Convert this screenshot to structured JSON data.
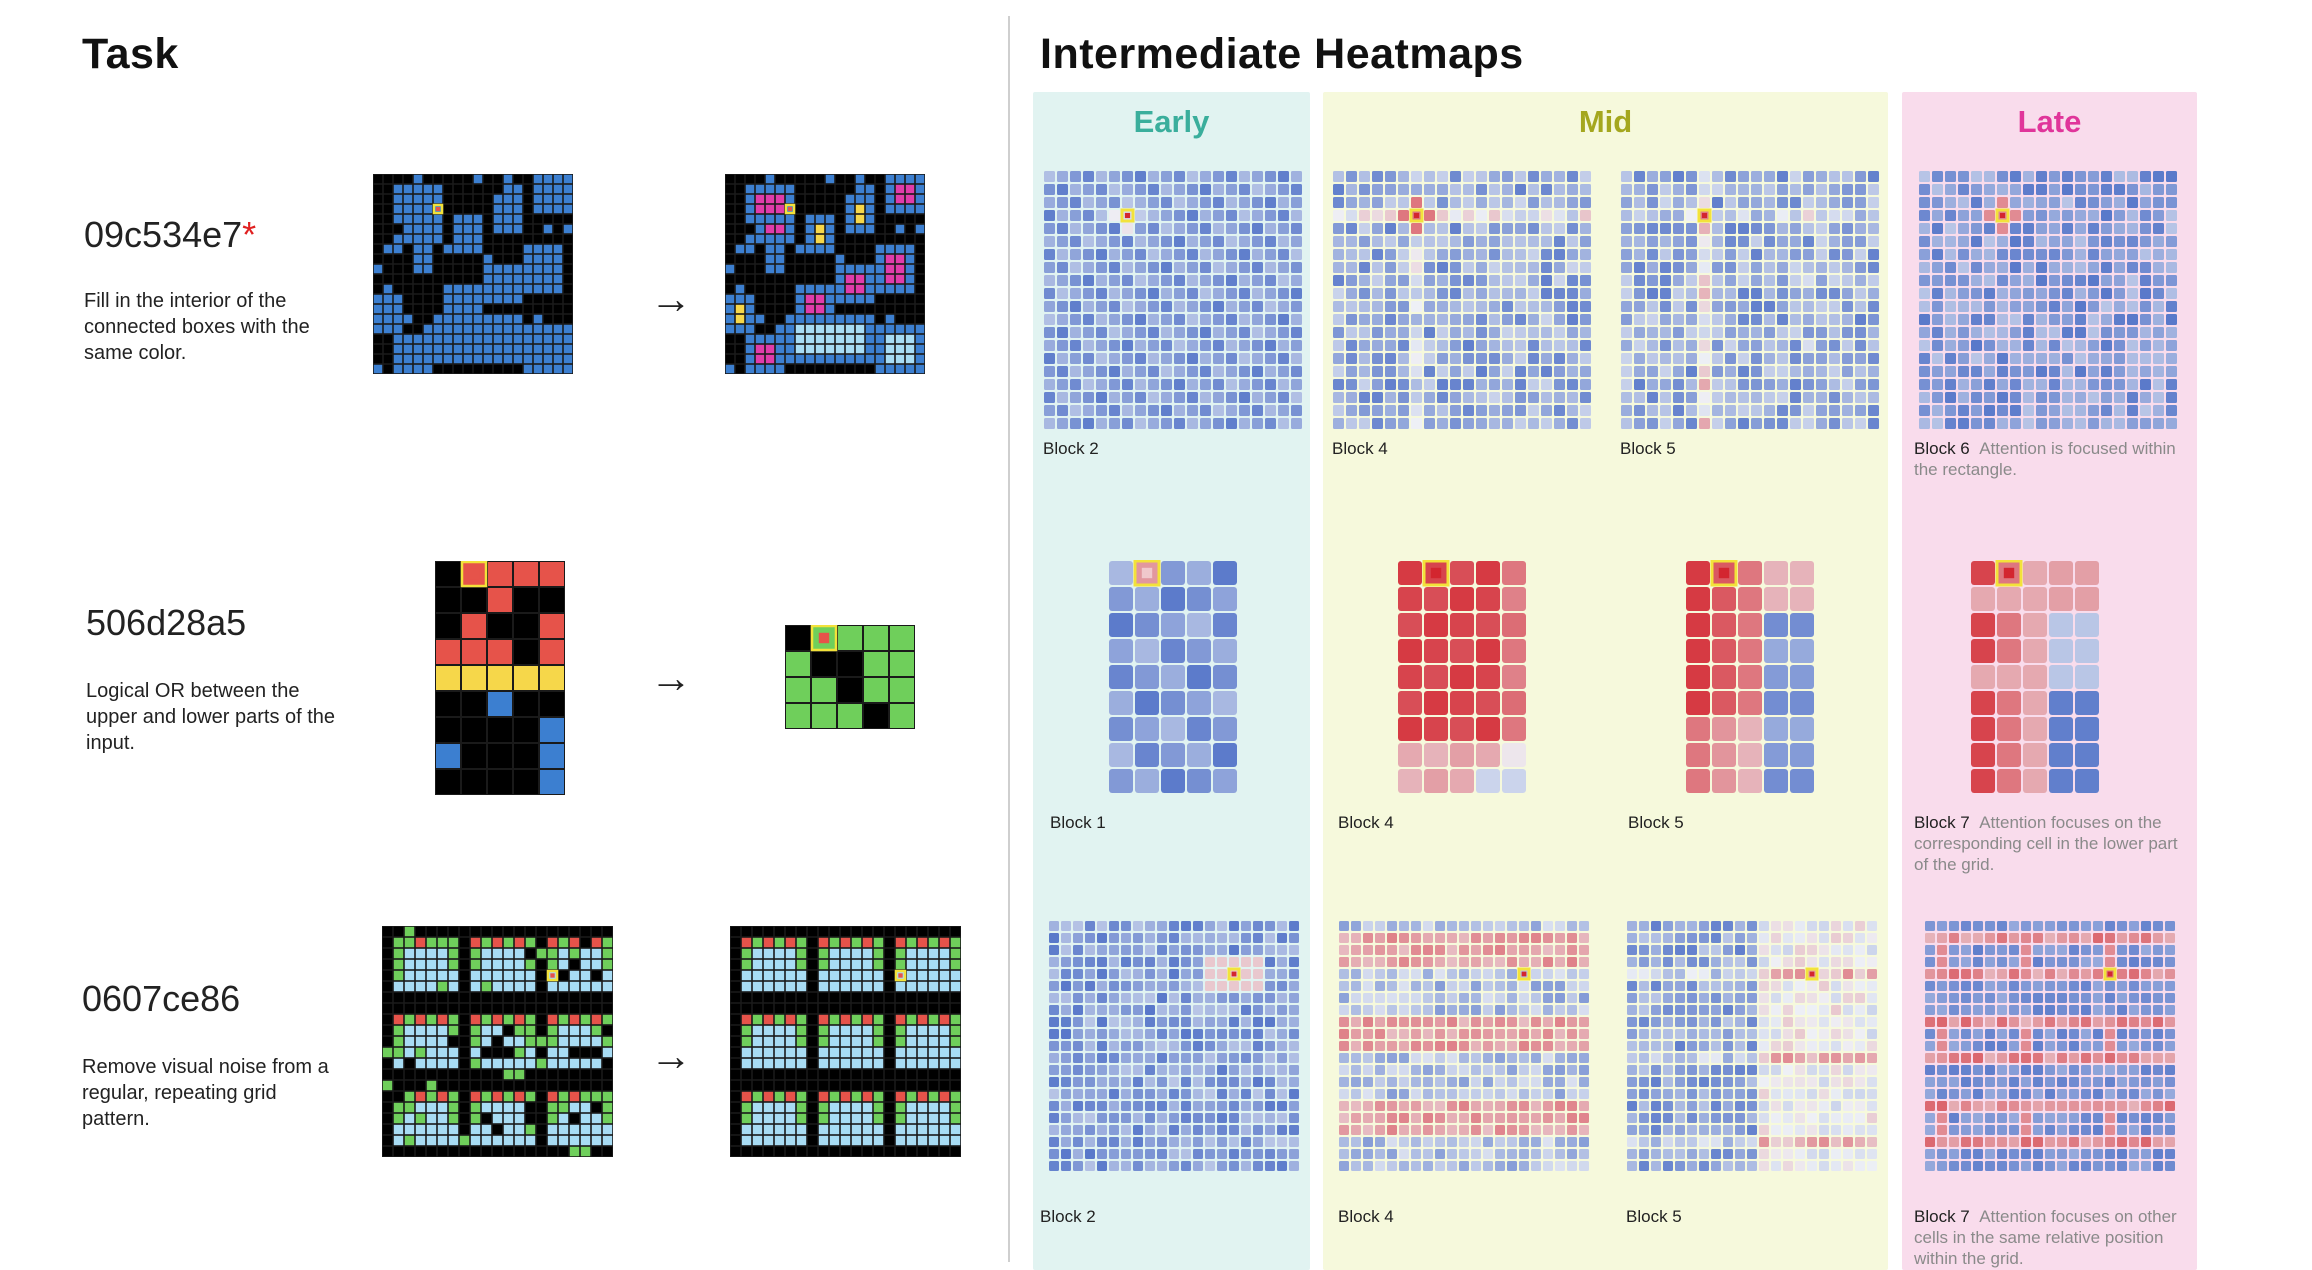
{
  "left": {
    "title": "Task",
    "tasks": [
      {
        "id": "09c534e7",
        "star": "*",
        "description": "Fill in the interior of the connected boxes with the same color."
      },
      {
        "id": "506d28a5",
        "star": "",
        "description": "Logical OR between the upper and lower parts of the input."
      },
      {
        "id": "0607ce86",
        "star": "",
        "description": "Remove visual noise from a regular, repeating grid pattern."
      }
    ],
    "arrow": "→"
  },
  "right": {
    "title": "Intermediate Heatmaps",
    "groups": [
      {
        "label": "Early",
        "color": "#3aae9c",
        "bg": "#e1f3f1"
      },
      {
        "label": "Mid",
        "color": "#a4a71e",
        "bg": "#f6f9dc"
      },
      {
        "label": "Late",
        "color": "#e0359a",
        "bg": "#f9dcec"
      }
    ],
    "rows": [
      {
        "early": {
          "block": "Block 2",
          "caption": ""
        },
        "mid": [
          {
            "block": "Block 4",
            "caption": ""
          },
          {
            "block": "Block 5",
            "caption": ""
          }
        ],
        "late": {
          "block": "Block 6",
          "caption": "Attention is focused within the rectangle."
        }
      },
      {
        "early": {
          "block": "Block 1",
          "caption": ""
        },
        "mid": [
          {
            "block": "Block 4",
            "caption": ""
          },
          {
            "block": "Block 5",
            "caption": ""
          }
        ],
        "late": {
          "block": "Block 7",
          "caption": "Attention focuses on the corresponding cell in the lower part of the grid."
        }
      },
      {
        "early": {
          "block": "Block 2",
          "caption": ""
        },
        "mid": [
          {
            "block": "Block 4",
            "caption": ""
          },
          {
            "block": "Block 5",
            "caption": ""
          }
        ],
        "late": {
          "block": "Block 7",
          "caption": "Attention focuses on other cells in the same relative position within the grid."
        }
      }
    ]
  },
  "colors": {
    "grid_black": "#000000",
    "arc_blue": "#3c7fd0",
    "arc_yellow": "#f6d74a",
    "arc_red": "#e6534a",
    "arc_green": "#6fcf5b",
    "arc_lightblue": "#a8dcf4",
    "arc_magenta": "#e03caa",
    "highlight": "#f3e23a",
    "heat_blue": "#3e63c2",
    "heat_white": "#eef0f6",
    "heat_red": "#d3262f"
  }
}
